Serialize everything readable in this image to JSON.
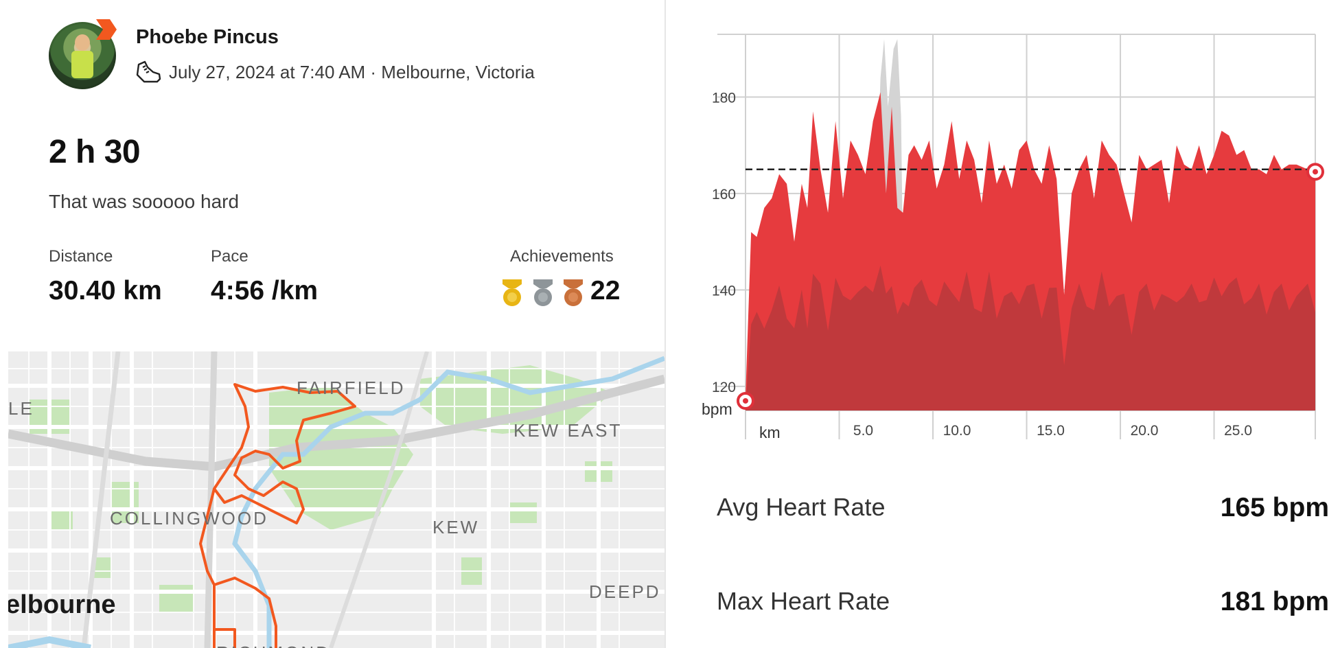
{
  "activity": {
    "athlete_name": "Phoebe Pincus",
    "meta": "July 27, 2024 at 7:40 AM · Melbourne, Victoria",
    "duration": "2 h 30",
    "description": "That was sooooo hard",
    "stats": [
      {
        "label": "Distance",
        "value": "30.40 km"
      },
      {
        "label": "Pace",
        "value": "4:56 /km"
      }
    ],
    "achievements": {
      "label": "Achievements",
      "count": "22",
      "medals": [
        {
          "icon": "gold-medal-icon",
          "color": "#e8b514"
        },
        {
          "icon": "silver-medal-icon",
          "color": "#8e9599"
        },
        {
          "icon": "bronze-medal-icon",
          "color": "#c9703a"
        }
      ]
    }
  },
  "map": {
    "labels": [
      "FAIRFIELD",
      "KEW EAST",
      "COLLINGWOOD",
      "KEW",
      "DEEPD",
      "RICHMOND",
      "LE"
    ],
    "city": "elbourne",
    "route_color": "#f2581f"
  },
  "heart_rate": {
    "avg_label": "Avg Heart Rate",
    "avg_value": "165 bpm",
    "max_label": "Max Heart Rate",
    "max_value": "181 bpm"
  },
  "chart_data": {
    "type": "area",
    "ylabel": "bpm",
    "xlabel": "km",
    "xlim": [
      0,
      30.4
    ],
    "ylim": [
      115,
      193
    ],
    "y_ticks": [
      120,
      140,
      160,
      180
    ],
    "x_ticks": [
      5.0,
      10.0,
      15.0,
      20.0,
      25.0
    ],
    "y_tick_labels": [
      "120",
      "140",
      "160",
      "180"
    ],
    "x_tick_labels": [
      "5.0",
      "10.0",
      "15.0",
      "20.0",
      "25.0"
    ],
    "avg_line": 165,
    "grid": true,
    "colors": {
      "fill": "#e63b3e",
      "dark": "#b8393c",
      "spike": "#d4d4d4",
      "avg": "#222222"
    },
    "series": [
      {
        "x": [
          0.0,
          0.3,
          0.6,
          1.0,
          1.4,
          1.8,
          2.2,
          2.6,
          3.0,
          3.3,
          3.6,
          4.0,
          4.4,
          4.8,
          5.2,
          5.6,
          6.0,
          6.4,
          6.8,
          7.2,
          7.5,
          7.8,
          8.1,
          8.4,
          8.7,
          9.0,
          9.4,
          9.8,
          10.2,
          10.6,
          11.0,
          11.4,
          11.8,
          12.2,
          12.6,
          13.0,
          13.4,
          13.8,
          14.2,
          14.6,
          15.0,
          15.4,
          15.8,
          16.2,
          16.6,
          17.0,
          17.4,
          17.8,
          18.2,
          18.6,
          19.0,
          19.4,
          19.8,
          20.2,
          20.6,
          21.0,
          21.4,
          21.8,
          22.2,
          22.6,
          23.0,
          23.4,
          23.8,
          24.2,
          24.6,
          25.0,
          25.4,
          25.8,
          26.2,
          26.6,
          27.0,
          27.4,
          27.8,
          28.2,
          28.6,
          29.0,
          29.4,
          30.0,
          30.4
        ],
        "y": [
          118,
          152,
          151,
          157,
          159,
          164,
          162,
          150,
          162,
          157,
          177,
          165,
          156,
          175,
          159,
          171,
          168,
          164,
          175,
          181,
          160,
          178,
          157,
          156,
          168,
          170,
          167,
          171,
          161,
          166,
          175,
          163,
          171,
          167,
          158,
          171,
          162,
          166,
          161,
          169,
          171,
          165,
          162,
          170,
          163,
          139,
          160,
          165,
          168,
          159,
          171,
          168,
          166,
          160,
          154,
          168,
          165,
          166,
          167,
          158,
          170,
          166,
          165,
          170,
          164,
          168,
          173,
          172,
          168,
          169,
          165,
          165,
          164,
          168,
          165,
          166,
          166,
          165,
          165
        ]
      }
    ]
  }
}
